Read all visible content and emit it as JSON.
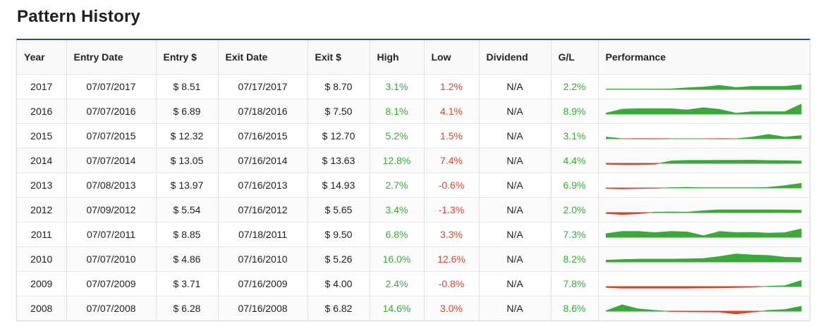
{
  "title": "Pattern History",
  "colors": {
    "positive": "#3aa93a",
    "negative": "#d6452f",
    "accent": "#2e4a8c"
  },
  "columns": {
    "year": "Year",
    "entry_date": "Entry Date",
    "entry_price": "Entry $",
    "exit_date": "Exit Date",
    "exit_price": "Exit $",
    "high": "High",
    "low": "Low",
    "dividend": "Dividend",
    "gl": "G/L",
    "performance": "Performance"
  },
  "rows": [
    {
      "year": "2017",
      "entry_date": "07/07/2017",
      "entry_price": "$ 8.51",
      "exit_date": "07/17/2017",
      "exit_price": "$ 8.70",
      "high": "3.1%",
      "low": "1.2%",
      "dividend": "N/A",
      "gl": "2.2%",
      "high_sign": "pos",
      "low_sign": "neg",
      "gl_sign": "pos",
      "performance": [
        0.2,
        0.2,
        0.2,
        0.2,
        0.3,
        1.0,
        1.6,
        2.6,
        1.2,
        2.0,
        2.0,
        2.0,
        3.0
      ]
    },
    {
      "year": "2016",
      "entry_date": "07/07/2016",
      "entry_price": "$ 6.89",
      "exit_date": "07/18/2016",
      "exit_price": "$ 7.50",
      "high": "8.1%",
      "low": "4.1%",
      "dividend": "N/A",
      "gl": "8.9%",
      "high_sign": "pos",
      "low_sign": "neg",
      "gl_sign": "pos",
      "performance": [
        0.5,
        3.2,
        3.5,
        3.5,
        3.5,
        2.7,
        4.2,
        3.0,
        0.5,
        1.5,
        1.5,
        1.5,
        6.5
      ]
    },
    {
      "year": "2015",
      "entry_date": "07/07/2015",
      "entry_price": "$ 12.32",
      "exit_date": "07/16/2015",
      "exit_price": "$ 12.70",
      "high": "5.2%",
      "low": "1.5%",
      "dividend": "N/A",
      "gl": "3.1%",
      "high_sign": "pos",
      "low_sign": "neg",
      "gl_sign": "pos",
      "performance": [
        1.0,
        0.0,
        -0.1,
        -0.1,
        0.0,
        0.0,
        0.0,
        -0.1,
        0.0,
        1.0,
        2.8,
        1.0,
        2.0
      ]
    },
    {
      "year": "2014",
      "entry_date": "07/07/2014",
      "entry_price": "$ 13.05",
      "exit_date": "07/16/2014",
      "exit_price": "$ 13.63",
      "high": "12.8%",
      "low": "7.4%",
      "dividend": "N/A",
      "gl": "4.4%",
      "high_sign": "pos",
      "low_sign": "neg",
      "gl_sign": "pos",
      "performance": [
        -0.6,
        -0.8,
        -0.8,
        -0.6,
        1.5,
        1.9,
        1.9,
        2.0,
        2.0,
        2.1,
        1.8,
        1.7,
        1.5
      ]
    },
    {
      "year": "2013",
      "entry_date": "07/08/2013",
      "entry_price": "$ 13.97",
      "exit_date": "07/16/2013",
      "exit_price": "$ 14.93",
      "high": "2.7%",
      "low": "-0.6%",
      "dividend": "N/A",
      "gl": "6.9%",
      "high_sign": "pos",
      "low_sign": "neg",
      "gl_sign": "pos",
      "performance": [
        -0.3,
        -0.6,
        -0.3,
        -0.2,
        0.2,
        0.4,
        0.2,
        0.2,
        0.2,
        0.2,
        0.4,
        1.5,
        3.0
      ]
    },
    {
      "year": "2012",
      "entry_date": "07/09/2012",
      "entry_price": "$ 5.54",
      "exit_date": "07/16/2012",
      "exit_price": "$ 5.65",
      "high": "3.4%",
      "low": "-1.3%",
      "dividend": "N/A",
      "gl": "2.0%",
      "high_sign": "pos",
      "low_sign": "neg",
      "gl_sign": "pos",
      "performance": [
        -0.5,
        -1.2,
        -0.7,
        0.3,
        0.4,
        0.3,
        1.2,
        1.8,
        1.8,
        1.8,
        1.8,
        1.7,
        1.6
      ]
    },
    {
      "year": "2011",
      "entry_date": "07/07/2011",
      "entry_price": "$ 8.85",
      "exit_date": "07/18/2011",
      "exit_price": "$ 9.50",
      "high": "6.8%",
      "low": "3.3%",
      "dividend": "N/A",
      "gl": "7.3%",
      "high_sign": "pos",
      "low_sign": "neg",
      "gl_sign": "pos",
      "performance": [
        2.3,
        3.8,
        3.8,
        3.0,
        3.8,
        3.5,
        1.0,
        3.8,
        3.0,
        3.2,
        2.7,
        3.0,
        5.5
      ]
    },
    {
      "year": "2010",
      "entry_date": "07/07/2010",
      "entry_price": "$ 4.86",
      "exit_date": "07/16/2010",
      "exit_price": "$ 5.26",
      "high": "16.0%",
      "low": "12.6%",
      "dividend": "N/A",
      "gl": "8.2%",
      "high_sign": "pos",
      "low_sign": "neg",
      "gl_sign": "pos",
      "performance": [
        1.0,
        1.5,
        1.8,
        1.8,
        1.8,
        2.0,
        2.2,
        3.5,
        5.2,
        4.5,
        4.2,
        3.0,
        2.8
      ]
    },
    {
      "year": "2009",
      "entry_date": "07/07/2009",
      "entry_price": "$ 3.71",
      "exit_date": "07/16/2009",
      "exit_price": "$ 4.00",
      "high": "2.4%",
      "low": "-0.8%",
      "dividend": "N/A",
      "gl": "7.8%",
      "high_sign": "pos",
      "low_sign": "neg",
      "gl_sign": "pos",
      "performance": [
        -0.5,
        -1.0,
        -1.0,
        -1.0,
        -1.0,
        -1.0,
        -0.9,
        -0.8,
        -0.6,
        -0.4,
        0.2,
        0.5,
        4.0
      ]
    },
    {
      "year": "2008",
      "entry_date": "07/07/2008",
      "entry_price": "$ 6.28",
      "exit_date": "07/16/2008",
      "exit_price": "$ 6.82",
      "high": "14.6%",
      "low": "3.0%",
      "dividend": "N/A",
      "gl": "8.6%",
      "high_sign": "pos",
      "low_sign": "neg",
      "gl_sign": "pos",
      "performance": [
        0.2,
        4.2,
        1.5,
        0.5,
        -0.2,
        -0.3,
        -0.4,
        -0.5,
        -1.8,
        -0.6,
        0.5,
        1.0,
        3.2
      ]
    }
  ]
}
